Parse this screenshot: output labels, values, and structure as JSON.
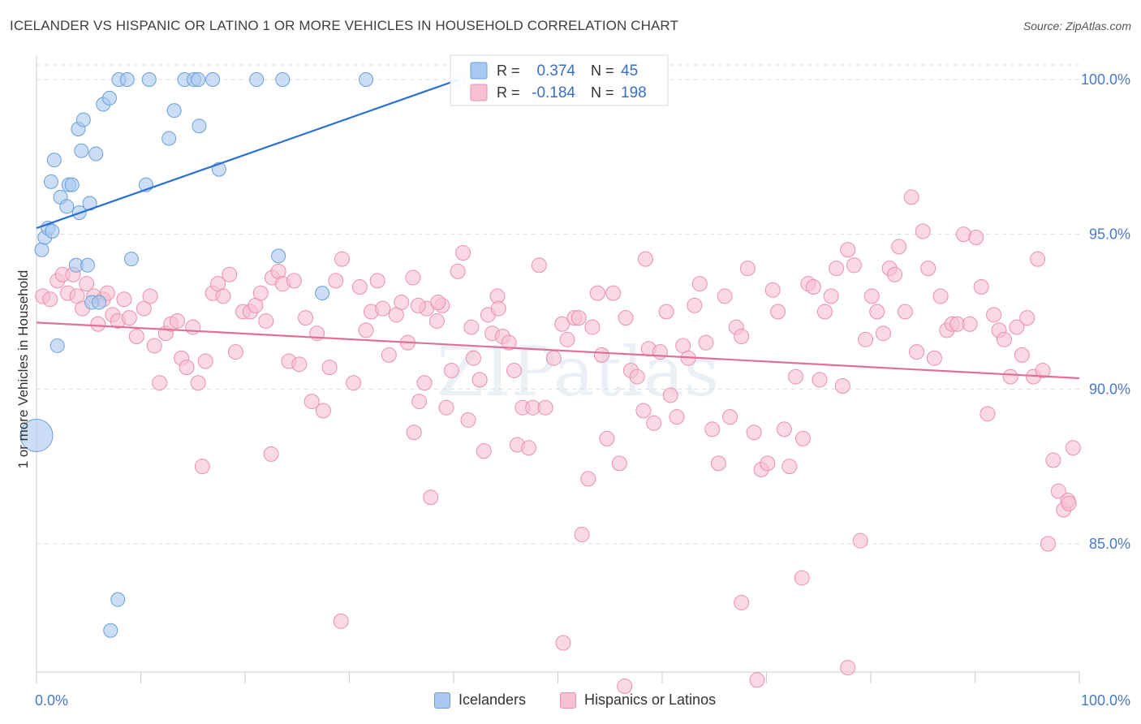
{
  "title": "ICELANDER VS HISPANIC OR LATINO 1 OR MORE VEHICLES IN HOUSEHOLD CORRELATION CHART",
  "source": "Source: ZipAtlas.com",
  "watermark": "ZIPatlas",
  "colors": {
    "blue_fill": "#a8c8f0",
    "blue_stroke": "#6a9fd8",
    "blue_line": "#2a6fd0",
    "pink_fill": "#f6bfd2",
    "pink_stroke": "#e98fb0",
    "pink_line": "#e0709a",
    "tick_text": "#4a78c8",
    "grid": "#dddddd"
  },
  "legend_top": {
    "rows": [
      {
        "r_label": "R =",
        "r_value": "0.374",
        "n_label": "N =",
        "n_value": "45",
        "series": "Icelanders"
      },
      {
        "r_label": "R =",
        "r_value": "-0.184",
        "n_label": "N =",
        "n_value": "198",
        "series": "Hispanics or Latinos"
      }
    ]
  },
  "legend_bottom": [
    "Icelanders",
    "Hispanics or Latinos"
  ],
  "chart_data": {
    "type": "scatter",
    "title": "ICELANDER VS HISPANIC OR LATINO 1 OR MORE VEHICLES IN HOUSEHOLD CORRELATION CHART",
    "xlabel": "",
    "ylabel": "1 or more Vehicles in Household",
    "xlim": [
      0,
      100
    ],
    "ylim": [
      80.5,
      100.5
    ],
    "x_tick_labels": [
      "0.0%",
      "100.0%"
    ],
    "y_ticks": [
      85,
      90,
      95,
      100
    ],
    "y_tick_labels": [
      "85.0%",
      "90.0%",
      "95.0%",
      "100.0%"
    ],
    "grid": true,
    "legend_position": "top-center",
    "series": [
      {
        "name": "Icelanders",
        "color": "#a8c8f0",
        "trend": {
          "x": [
            0,
            40.5
          ],
          "y": [
            95.2,
            100.0
          ]
        },
        "points": [
          [
            0.5,
            94.5
          ],
          [
            0.8,
            94.9
          ],
          [
            1.1,
            95.2
          ],
          [
            1.5,
            95.1
          ],
          [
            1.4,
            96.7
          ],
          [
            1.7,
            97.4
          ],
          [
            2.3,
            96.2
          ],
          [
            2.9,
            95.9
          ],
          [
            3.1,
            96.6
          ],
          [
            3.4,
            96.6
          ],
          [
            3.8,
            94.0
          ],
          [
            4.0,
            98.4
          ],
          [
            4.3,
            97.7
          ],
          [
            4.5,
            98.7
          ],
          [
            4.9,
            94.0
          ],
          [
            5.1,
            96.0
          ],
          [
            5.3,
            92.8
          ],
          [
            5.7,
            97.6
          ],
          [
            6.4,
            99.2
          ],
          [
            7.0,
            99.4
          ],
          [
            7.9,
            100.0
          ],
          [
            8.7,
            100.0
          ],
          [
            9.1,
            94.2
          ],
          [
            10.5,
            96.6
          ],
          [
            10.8,
            100.0
          ],
          [
            12.7,
            98.1
          ],
          [
            13.2,
            99.0
          ],
          [
            14.2,
            100.0
          ],
          [
            15.1,
            100.0
          ],
          [
            15.5,
            100.0
          ],
          [
            15.6,
            98.5
          ],
          [
            16.9,
            100.0
          ],
          [
            17.5,
            97.1
          ],
          [
            21.1,
            100.0
          ],
          [
            23.2,
            94.3
          ],
          [
            23.6,
            100.0
          ],
          [
            27.4,
            93.1
          ],
          [
            31.6,
            100.0
          ],
          [
            2.0,
            91.4
          ],
          [
            7.8,
            83.2
          ],
          [
            7.1,
            82.2
          ],
          [
            0.0,
            88.5
          ],
          [
            40.5,
            100.0
          ],
          [
            4.1,
            95.7
          ],
          [
            6.0,
            92.8
          ]
        ]
      },
      {
        "name": "Hispanics or Latinos",
        "color": "#f6bfd2",
        "trend": {
          "x": [
            0,
            100
          ],
          "y": [
            92.15,
            90.35
          ]
        },
        "points": [
          [
            0.6,
            93.0
          ],
          [
            1.3,
            92.9
          ],
          [
            2.0,
            93.5
          ],
          [
            2.5,
            93.7
          ],
          [
            3.0,
            93.1
          ],
          [
            3.5,
            93.7
          ],
          [
            3.9,
            93.0
          ],
          [
            4.4,
            92.6
          ],
          [
            4.8,
            93.4
          ],
          [
            5.5,
            93.0
          ],
          [
            5.9,
            92.1
          ],
          [
            6.4,
            92.9
          ],
          [
            6.8,
            93.1
          ],
          [
            7.3,
            92.4
          ],
          [
            7.8,
            92.2
          ],
          [
            8.4,
            92.9
          ],
          [
            8.9,
            92.3
          ],
          [
            9.6,
            91.7
          ],
          [
            10.3,
            92.6
          ],
          [
            10.9,
            93.0
          ],
          [
            11.3,
            91.4
          ],
          [
            11.8,
            90.2
          ],
          [
            12.4,
            91.8
          ],
          [
            12.9,
            92.1
          ],
          [
            13.5,
            92.2
          ],
          [
            13.9,
            91.0
          ],
          [
            14.4,
            90.7
          ],
          [
            15.0,
            92.0
          ],
          [
            15.5,
            90.2
          ],
          [
            16.2,
            90.9
          ],
          [
            16.9,
            93.1
          ],
          [
            17.4,
            93.4
          ],
          [
            17.9,
            93.0
          ],
          [
            18.5,
            93.7
          ],
          [
            19.1,
            91.2
          ],
          [
            19.8,
            92.5
          ],
          [
            20.5,
            92.5
          ],
          [
            21.0,
            92.7
          ],
          [
            21.5,
            93.1
          ],
          [
            22.0,
            92.2
          ],
          [
            22.6,
            93.6
          ],
          [
            23.2,
            93.8
          ],
          [
            23.6,
            93.4
          ],
          [
            24.2,
            90.9
          ],
          [
            24.7,
            93.5
          ],
          [
            25.2,
            90.8
          ],
          [
            25.8,
            92.3
          ],
          [
            26.4,
            89.6
          ],
          [
            26.9,
            91.8
          ],
          [
            27.5,
            89.3
          ],
          [
            28.1,
            90.7
          ],
          [
            28.7,
            93.5
          ],
          [
            29.3,
            94.2
          ],
          [
            30.4,
            90.2
          ],
          [
            31.0,
            93.3
          ],
          [
            31.6,
            91.9
          ],
          [
            32.1,
            92.5
          ],
          [
            32.7,
            93.5
          ],
          [
            33.2,
            92.6
          ],
          [
            33.8,
            91.1
          ],
          [
            34.5,
            92.4
          ],
          [
            35.0,
            92.8
          ],
          [
            35.6,
            91.5
          ],
          [
            36.1,
            93.6
          ],
          [
            36.7,
            89.6
          ],
          [
            37.4,
            92.6
          ],
          [
            37.8,
            86.5
          ],
          [
            38.4,
            92.2
          ],
          [
            38.9,
            92.7
          ],
          [
            39.3,
            89.4
          ],
          [
            39.8,
            90.6
          ],
          [
            40.4,
            93.8
          ],
          [
            40.9,
            94.4
          ],
          [
            41.4,
            89.0
          ],
          [
            41.9,
            91.0
          ],
          [
            42.5,
            90.3
          ],
          [
            42.9,
            88.0
          ],
          [
            43.3,
            92.4
          ],
          [
            43.7,
            91.8
          ],
          [
            44.2,
            93.0
          ],
          [
            44.7,
            91.7
          ],
          [
            45.3,
            91.5
          ],
          [
            45.8,
            90.6
          ],
          [
            46.1,
            88.2
          ],
          [
            46.6,
            89.4
          ],
          [
            47.2,
            88.1
          ],
          [
            47.6,
            89.4
          ],
          [
            48.2,
            94.0
          ],
          [
            48.8,
            89.4
          ],
          [
            49.6,
            91.0
          ],
          [
            50.4,
            92.1
          ],
          [
            50.9,
            91.6
          ],
          [
            51.6,
            92.3
          ],
          [
            52.0,
            92.3
          ],
          [
            52.3,
            85.3
          ],
          [
            52.9,
            87.1
          ],
          [
            53.3,
            92.0
          ],
          [
            53.8,
            93.1
          ],
          [
            54.2,
            91.1
          ],
          [
            54.7,
            88.4
          ],
          [
            55.3,
            93.1
          ],
          [
            55.9,
            87.6
          ],
          [
            56.5,
            92.3
          ],
          [
            57.0,
            90.6
          ],
          [
            57.6,
            90.4
          ],
          [
            58.2,
            89.3
          ],
          [
            58.7,
            91.3
          ],
          [
            59.2,
            88.9
          ],
          [
            59.8,
            91.2
          ],
          [
            60.4,
            92.5
          ],
          [
            60.8,
            89.8
          ],
          [
            61.4,
            89.1
          ],
          [
            62.0,
            91.4
          ],
          [
            62.5,
            91.0
          ],
          [
            63.1,
            92.7
          ],
          [
            63.6,
            93.4
          ],
          [
            64.2,
            91.5
          ],
          [
            64.8,
            88.7
          ],
          [
            65.4,
            87.6
          ],
          [
            66.0,
            93.0
          ],
          [
            66.5,
            89.1
          ],
          [
            67.1,
            92.0
          ],
          [
            67.6,
            91.7
          ],
          [
            68.2,
            93.9
          ],
          [
            68.8,
            88.6
          ],
          [
            69.5,
            87.4
          ],
          [
            70.1,
            87.6
          ],
          [
            70.6,
            93.2
          ],
          [
            71.1,
            92.5
          ],
          [
            71.7,
            88.7
          ],
          [
            72.2,
            87.5
          ],
          [
            72.8,
            90.4
          ],
          [
            73.5,
            88.4
          ],
          [
            74.0,
            93.4
          ],
          [
            74.5,
            93.3
          ],
          [
            75.1,
            90.3
          ],
          [
            75.6,
            92.5
          ],
          [
            76.2,
            93.0
          ],
          [
            76.7,
            93.9
          ],
          [
            77.3,
            90.1
          ],
          [
            77.8,
            94.5
          ],
          [
            78.4,
            94.0
          ],
          [
            79.0,
            85.1
          ],
          [
            79.5,
            91.6
          ],
          [
            80.1,
            93.0
          ],
          [
            80.6,
            92.5
          ],
          [
            81.2,
            91.8
          ],
          [
            81.8,
            93.9
          ],
          [
            82.3,
            93.7
          ],
          [
            82.7,
            94.6
          ],
          [
            83.3,
            92.5
          ],
          [
            83.9,
            96.2
          ],
          [
            84.4,
            91.2
          ],
          [
            85.0,
            95.1
          ],
          [
            85.5,
            93.9
          ],
          [
            86.1,
            91.0
          ],
          [
            86.7,
            93.0
          ],
          [
            87.3,
            91.9
          ],
          [
            87.8,
            92.1
          ],
          [
            88.3,
            92.1
          ],
          [
            88.9,
            95.0
          ],
          [
            89.5,
            92.1
          ],
          [
            90.1,
            94.9
          ],
          [
            90.6,
            93.3
          ],
          [
            91.2,
            89.2
          ],
          [
            91.8,
            92.4
          ],
          [
            92.3,
            91.9
          ],
          [
            92.8,
            91.6
          ],
          [
            93.4,
            90.4
          ],
          [
            94.0,
            92.0
          ],
          [
            94.5,
            91.1
          ],
          [
            95.0,
            92.3
          ],
          [
            95.6,
            90.4
          ],
          [
            96.0,
            94.2
          ],
          [
            96.5,
            90.6
          ],
          [
            97.0,
            85.0
          ],
          [
            97.5,
            87.7
          ],
          [
            98.0,
            86.7
          ],
          [
            98.5,
            86.1
          ],
          [
            98.9,
            86.4
          ],
          [
            99.4,
            88.1
          ],
          [
            99.0,
            86.3
          ],
          [
            22.5,
            87.9
          ],
          [
            15.9,
            87.5
          ],
          [
            29.2,
            82.5
          ],
          [
            38.5,
            92.8
          ],
          [
            50.5,
            81.8
          ],
          [
            56.4,
            80.4
          ],
          [
            69.1,
            80.6
          ],
          [
            73.4,
            83.9
          ],
          [
            67.6,
            83.1
          ],
          [
            77.8,
            81.0
          ],
          [
            58.4,
            94.2
          ],
          [
            44.3,
            92.6
          ],
          [
            41.7,
            92.0
          ],
          [
            36.6,
            92.7
          ],
          [
            37.2,
            90.2
          ],
          [
            36.2,
            88.6
          ]
        ]
      }
    ]
  }
}
